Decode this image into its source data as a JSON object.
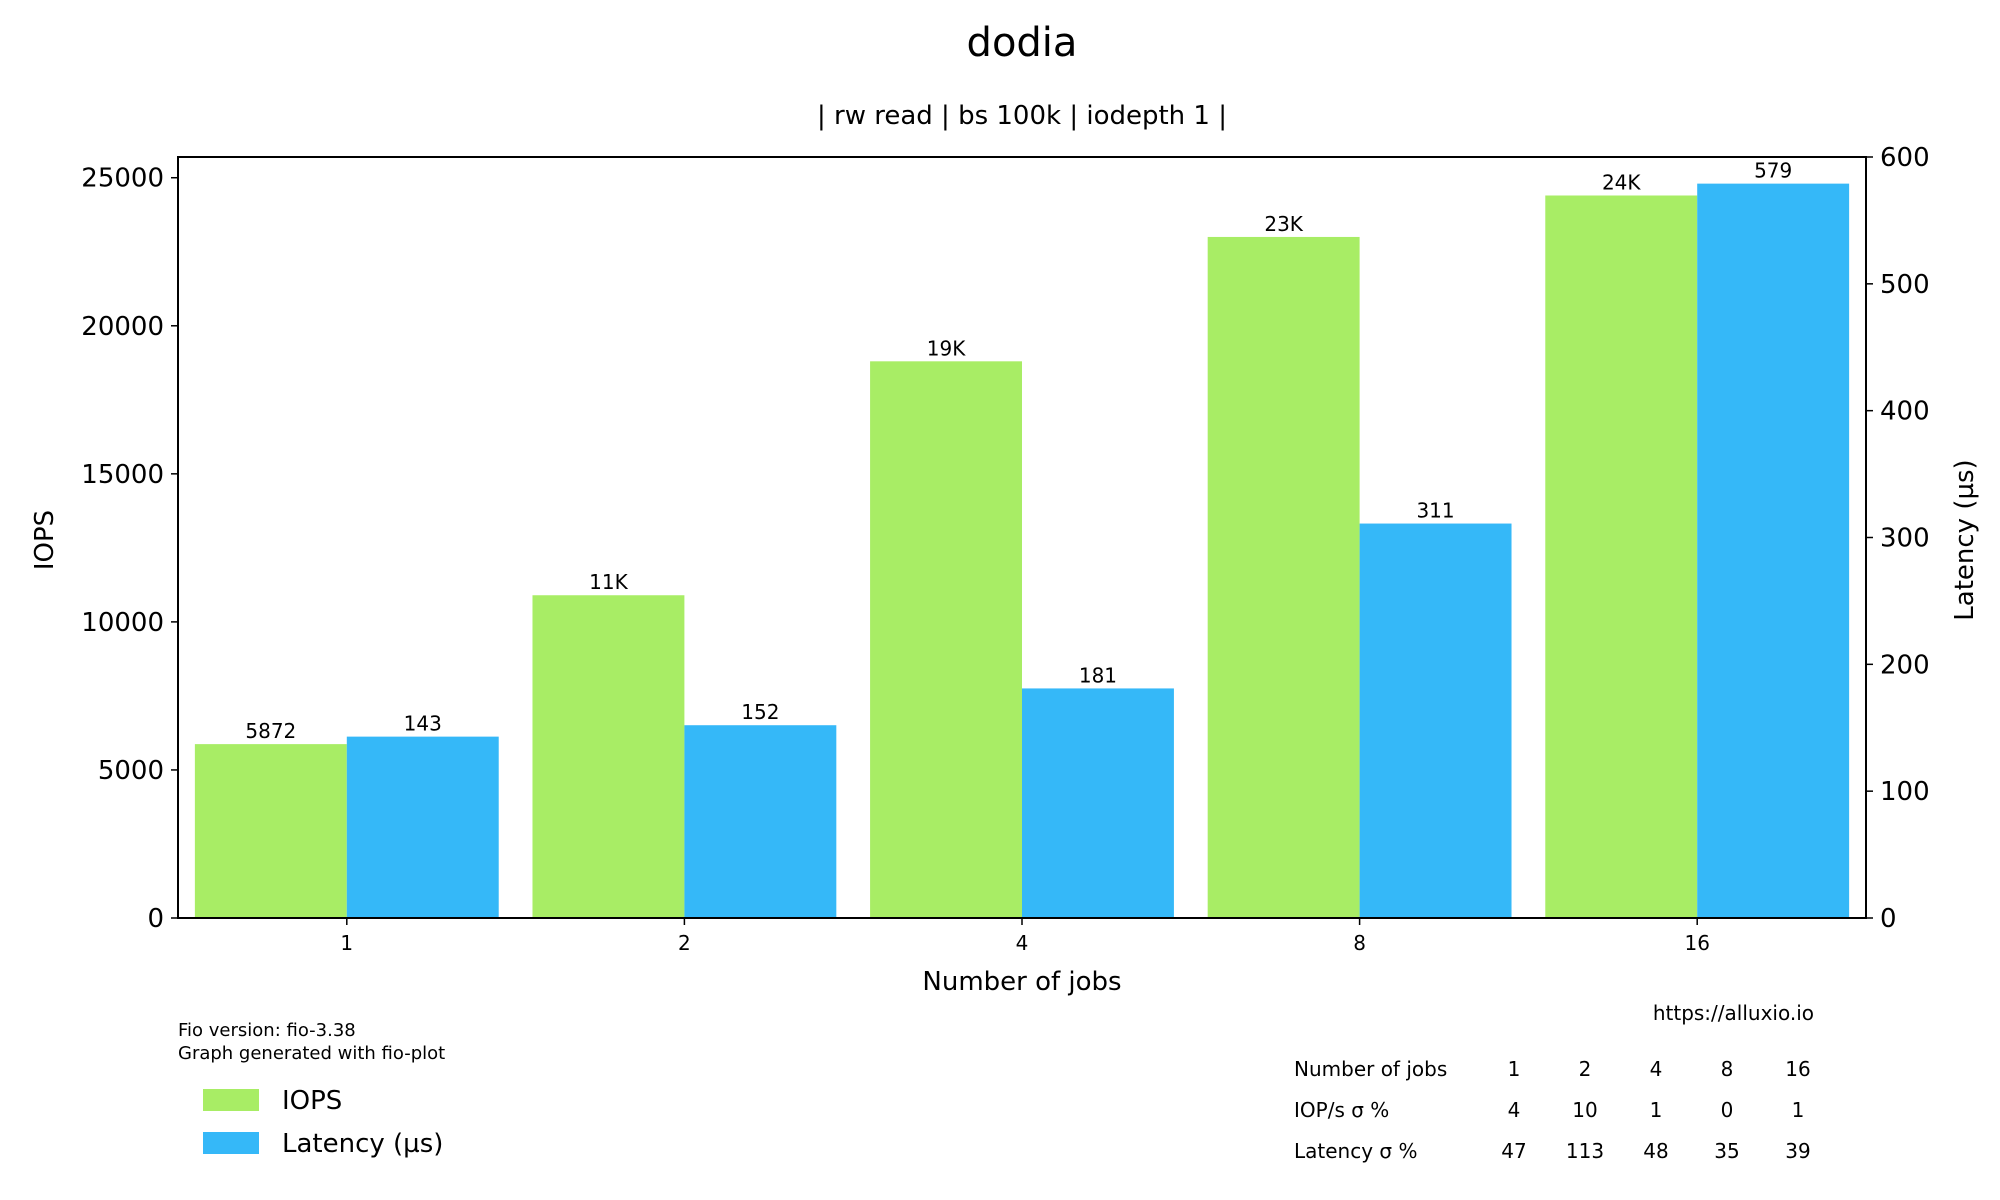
{
  "colors": {
    "iops": "#a8ed65",
    "latency": "#35b8f8"
  },
  "chart_data": {
    "type": "bar",
    "title": "dodia",
    "subtitle": "| rw read | bs 100k | iodepth 1 |",
    "xlabel": "Number of jobs",
    "ylabel_left": "IOPS",
    "ylabel_right": "Latency (µs)",
    "categories": [
      "1",
      "2",
      "4",
      "8",
      "16"
    ],
    "series": [
      {
        "name": "IOPS",
        "axis": "left",
        "values": [
          5872,
          10900,
          18800,
          23000,
          24400
        ],
        "labels": [
          "5872",
          "11K",
          "19K",
          "23K",
          "24K"
        ]
      },
      {
        "name": "Latency (µs)",
        "axis": "right",
        "values": [
          143,
          152,
          181,
          311,
          579
        ],
        "labels": [
          "143",
          "152",
          "181",
          "311",
          "579"
        ]
      }
    ],
    "ylim_left": [
      0,
      25700
    ],
    "ylim_right": [
      0,
      600
    ],
    "yticks_left": [
      0,
      5000,
      10000,
      15000,
      20000,
      25000
    ],
    "yticks_right": [
      0,
      100,
      200,
      300,
      400,
      500,
      600
    ],
    "legend_position": "bottom-left",
    "grid": false
  },
  "notes": {
    "fio_version": "Fio version: fio-3.38",
    "generator": "Graph generated with fio-plot",
    "url": "https://alluxio.io"
  },
  "stats_table": {
    "header": [
      "Number of jobs",
      "1",
      "2",
      "4",
      "8",
      "16"
    ],
    "rows": [
      [
        "IOP/s σ %",
        "4",
        "10",
        "1",
        "0",
        "1"
      ],
      [
        "Latency σ %",
        "47",
        "113",
        "48",
        "35",
        "39"
      ]
    ]
  }
}
